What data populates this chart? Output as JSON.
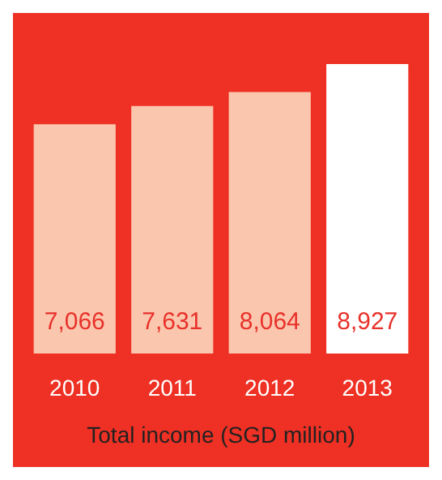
{
  "chart_data": {
    "type": "bar",
    "title": "Total income (SGD million)",
    "categories": [
      "2010",
      "2011",
      "2012",
      "2013"
    ],
    "values": [
      7066,
      7631,
      8064,
      8927
    ],
    "colors": [
      "#fbc6ae",
      "#fbc6ae",
      "#fbc6ae",
      "#ffffff"
    ],
    "value_labels": [
      "7,066",
      "7,631",
      "8,064",
      "8,927"
    ],
    "grid": false
  }
}
